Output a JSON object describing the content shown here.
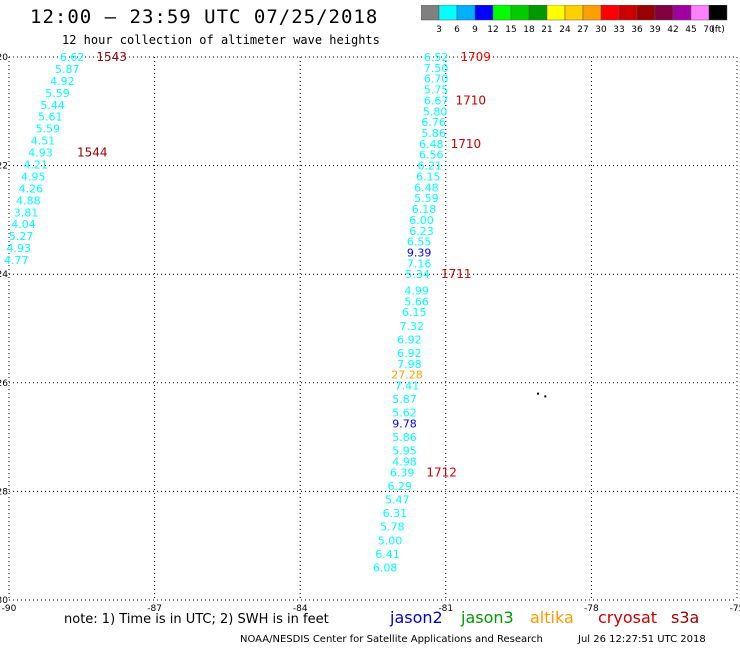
{
  "header": {
    "title": "12:00 – 23:59 UTC 07/25/2018",
    "subtitle": "12 hour collection of altimeter wave heights"
  },
  "colorbar": {
    "labels": [
      "3",
      "6",
      "9",
      "12",
      "15",
      "18",
      "21",
      "24",
      "27",
      "30",
      "33",
      "36",
      "39",
      "42",
      "45",
      "70",
      "(ft)"
    ],
    "colors": [
      "#808080",
      "#00ffff",
      "#00b0ff",
      "#0000ff",
      "#00ff00",
      "#00cc00",
      "#009900",
      "#ffff00",
      "#ffd000",
      "#ffa000",
      "#ff0000",
      "#cc0000",
      "#990000",
      "#800040",
      "#a000a0",
      "#ff80ff",
      "#000000"
    ]
  },
  "footer": {
    "note": "note: 1) Time is in UTC; 2) SWH is in feet",
    "credit": "NOAA/NESDIS Center for Satellite Applications and Research",
    "timestamp": "Jul 26 12:27:51 UTC 2018"
  },
  "legend": [
    {
      "name": "jason2",
      "color": "#0000cc"
    },
    {
      "name": "jason3",
      "color": "#009900"
    },
    {
      "name": "altika",
      "color": "#ff9900"
    },
    {
      "name": "cryosat",
      "color": "#cc0000"
    },
    {
      "name": "s3a",
      "color": "#990000"
    }
  ],
  "chart_data": {
    "type": "scatter",
    "title": "12:00 – 23:59 UTC 07/25/2018",
    "xlabel": "",
    "ylabel": "",
    "xlim": [
      -90,
      -75
    ],
    "ylim": [
      -30,
      -20
    ],
    "x_ticks": [
      -90,
      -87,
      -84,
      -81,
      -78,
      -75
    ],
    "y_ticks": [
      -20,
      -22,
      -24,
      -26,
      -28,
      -30
    ],
    "x_tick_labels": [
      "-90",
      "-87",
      "-84",
      "-81",
      "-78",
      "-75"
    ],
    "y_tick_labels": [
      "-20",
      "-22",
      "-24",
      "-26",
      "-28",
      "-30"
    ],
    "grid": true,
    "tracks": [
      {
        "satellite": "s3a",
        "color": "#00ffff",
        "points": [
          {
            "x": -88.7,
            "y": -20.0,
            "v": "6.62"
          },
          {
            "x": -88.8,
            "y": -20.22,
            "v": "5.87"
          },
          {
            "x": -88.9,
            "y": -20.44,
            "v": "4.92"
          },
          {
            "x": -89.0,
            "y": -20.66,
            "v": "5.59"
          },
          {
            "x": -89.1,
            "y": -20.88,
            "v": "5.44"
          },
          {
            "x": -89.15,
            "y": -21.1,
            "v": "5.61"
          },
          {
            "x": -89.2,
            "y": -21.32,
            "v": "5.59"
          },
          {
            "x": -89.3,
            "y": -21.54,
            "v": "4.51"
          },
          {
            "x": -89.35,
            "y": -21.76,
            "v": "4.93"
          },
          {
            "x": -89.45,
            "y": -21.98,
            "v": "4.21"
          },
          {
            "x": -89.5,
            "y": -22.2,
            "v": "4.95"
          },
          {
            "x": -89.55,
            "y": -22.42,
            "v": "4.26"
          },
          {
            "x": -89.6,
            "y": -22.64,
            "v": "4.88"
          },
          {
            "x": -89.65,
            "y": -22.86,
            "v": "3.81"
          },
          {
            "x": -89.7,
            "y": -23.08,
            "v": "4.04"
          },
          {
            "x": -89.75,
            "y": -23.3,
            "v": "5.27"
          },
          {
            "x": -89.8,
            "y": -23.52,
            "v": "4.93"
          },
          {
            "x": -89.85,
            "y": -23.74,
            "v": "4.77"
          }
        ],
        "time_labels": [
          {
            "x": -88.2,
            "y": -20.0,
            "label": "1543",
            "color": "#990000"
          },
          {
            "x": -88.6,
            "y": -21.76,
            "label": "1544",
            "color": "#990000"
          }
        ]
      },
      {
        "satellite": "cryosat",
        "color": "#00ffff",
        "points": [
          {
            "x": -81.2,
            "y": -20.0,
            "v": "6.52"
          },
          {
            "x": -81.2,
            "y": -20.2,
            "v": "7.50"
          },
          {
            "x": -81.2,
            "y": -20.4,
            "v": "6.70"
          },
          {
            "x": -81.2,
            "y": -20.6,
            "v": "5.75"
          },
          {
            "x": -81.2,
            "y": -20.8,
            "v": "6.67"
          },
          {
            "x": -81.22,
            "y": -21.0,
            "v": "5.80"
          },
          {
            "x": -81.25,
            "y": -21.2,
            "v": "6.76"
          },
          {
            "x": -81.25,
            "y": -21.4,
            "v": "5.86"
          },
          {
            "x": -81.3,
            "y": -21.6,
            "v": "6.48"
          },
          {
            "x": -81.3,
            "y": -21.8,
            "v": "6.56"
          },
          {
            "x": -81.33,
            "y": -22.0,
            "v": "6.21"
          },
          {
            "x": -81.36,
            "y": -22.2,
            "v": "6.15"
          },
          {
            "x": -81.4,
            "y": -22.4,
            "v": "6.48"
          },
          {
            "x": -81.4,
            "y": -22.6,
            "v": "5.59"
          },
          {
            "x": -81.45,
            "y": -22.8,
            "v": "6.18"
          },
          {
            "x": -81.5,
            "y": -23.0,
            "v": "6.00"
          },
          {
            "x": -81.5,
            "y": -23.2,
            "v": "6.23"
          },
          {
            "x": -81.55,
            "y": -23.4,
            "v": "6.55"
          },
          {
            "x": -81.55,
            "y": -23.6,
            "v": "9.39",
            "color": "#0000ff"
          },
          {
            "x": -81.55,
            "y": -23.8,
            "v": "7.16"
          },
          {
            "x": -81.58,
            "y": -24.0,
            "v": "5.34"
          },
          {
            "x": -81.6,
            "y": -24.3,
            "v": "4.99"
          },
          {
            "x": -81.6,
            "y": -24.5,
            "v": "5.66"
          },
          {
            "x": -81.65,
            "y": -24.7,
            "v": "6.15"
          },
          {
            "x": -81.7,
            "y": -24.95,
            "v": "7.32"
          },
          {
            "x": -81.75,
            "y": -25.2,
            "v": "6.92"
          },
          {
            "x": -81.75,
            "y": -25.45,
            "v": "6.92"
          },
          {
            "x": -81.75,
            "y": -25.65,
            "v": "7.98"
          },
          {
            "x": -81.8,
            "y": -25.85,
            "v": "27.28",
            "color": "#ffa000"
          },
          {
            "x": -81.8,
            "y": -26.05,
            "v": "7.41"
          },
          {
            "x": -81.85,
            "y": -26.3,
            "v": "5.87"
          },
          {
            "x": -81.85,
            "y": -26.55,
            "v": "5.62"
          },
          {
            "x": -81.85,
            "y": -26.75,
            "v": "9.78",
            "color": "#0000ff"
          },
          {
            "x": -81.85,
            "y": -27.0,
            "v": "5.86"
          },
          {
            "x": -81.85,
            "y": -27.25,
            "v": "5.95"
          },
          {
            "x": -81.85,
            "y": -27.45,
            "v": "4.98"
          },
          {
            "x": -81.9,
            "y": -27.65,
            "v": "6.39"
          },
          {
            "x": -81.95,
            "y": -27.9,
            "v": "6.29"
          },
          {
            "x": -82.0,
            "y": -28.15,
            "v": "5.47"
          },
          {
            "x": -82.05,
            "y": -28.4,
            "v": "6.31"
          },
          {
            "x": -82.1,
            "y": -28.65,
            "v": "5.78"
          },
          {
            "x": -82.15,
            "y": -28.9,
            "v": "5.00"
          },
          {
            "x": -82.2,
            "y": -29.15,
            "v": "6.41"
          },
          {
            "x": -82.25,
            "y": -29.4,
            "v": "6.08"
          }
        ],
        "time_labels": [
          {
            "x": -80.7,
            "y": -20.0,
            "label": "1709",
            "color": "#ff0000"
          },
          {
            "x": -80.8,
            "y": -20.8,
            "label": "1710",
            "color": "#cc0000"
          },
          {
            "x": -80.9,
            "y": -21.6,
            "label": "1710",
            "color": "#cc0000"
          },
          {
            "x": -81.1,
            "y": -24.0,
            "label": "1711",
            "color": "#cc0000"
          },
          {
            "x": -81.4,
            "y": -27.65,
            "label": "1712",
            "color": "#cc0000"
          }
        ]
      }
    ],
    "marks": [
      {
        "x": -79.1,
        "y": -26.2
      },
      {
        "x": -78.95,
        "y": -26.25
      }
    ]
  }
}
